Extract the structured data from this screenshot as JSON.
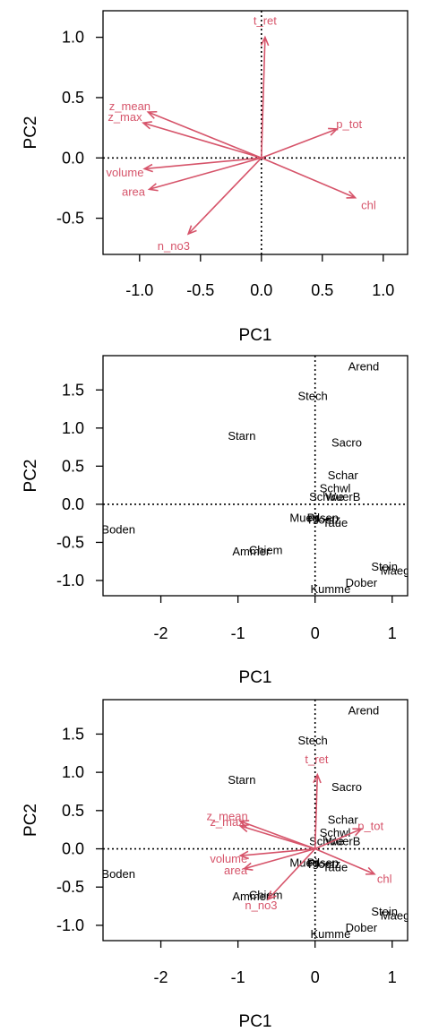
{
  "colors": {
    "arrow": "#D6546A",
    "frame": "#000000",
    "text": "#000000"
  },
  "chart_data": [
    {
      "type": "scatter",
      "title": "",
      "xlabel": "PC1",
      "ylabel": "PC2",
      "xlim": [
        -1.3,
        1.2
      ],
      "ylim": [
        -0.8,
        1.22
      ],
      "xticks": [
        -1.0,
        -0.5,
        0.0,
        0.5,
        1.0
      ],
      "xtick_labels": [
        "-1.0",
        "-0.5",
        "0.0",
        "0.5",
        "1.0"
      ],
      "yticks": [
        -0.5,
        0.0,
        0.5,
        1.0
      ],
      "ytick_labels": [
        "-0.5",
        "0.0",
        "0.5",
        "1.0"
      ],
      "reference_lines": {
        "x": 0,
        "y": 0,
        "style": "dotted"
      },
      "arrows": [
        {
          "name": "t_ret",
          "x": 0.03,
          "y": 1.0,
          "lx": 0.03,
          "ly": 1.14
        },
        {
          "name": "p_tot",
          "x": 0.62,
          "y": 0.24,
          "lx": 0.72,
          "ly": 0.28
        },
        {
          "name": "z_mean",
          "x": -0.93,
          "y": 0.38,
          "lx": -1.08,
          "ly": 0.43
        },
        {
          "name": "z_max",
          "x": -0.97,
          "y": 0.29,
          "lx": -1.12,
          "ly": 0.34
        },
        {
          "name": "volume",
          "x": -0.96,
          "y": -0.09,
          "lx": -1.12,
          "ly": -0.12
        },
        {
          "name": "area",
          "x": -0.92,
          "y": -0.26,
          "lx": -1.05,
          "ly": -0.28
        },
        {
          "name": "chl",
          "x": 0.77,
          "y": -0.33,
          "lx": 0.88,
          "ly": -0.39
        },
        {
          "name": "n_no3",
          "x": -0.6,
          "y": -0.63,
          "lx": -0.72,
          "ly": -0.73
        }
      ]
    },
    {
      "type": "scatter",
      "title": "",
      "xlabel": "PC1",
      "ylabel": "PC2",
      "xlim": [
        -2.75,
        1.2
      ],
      "ylim": [
        -1.2,
        1.95
      ],
      "xticks": [
        -2,
        -1,
        0,
        1
      ],
      "xtick_labels": [
        "-2",
        "-1",
        "0",
        "1"
      ],
      "yticks": [
        -1.0,
        -0.5,
        0.0,
        0.5,
        1.0,
        1.5
      ],
      "ytick_labels": [
        "-1.0",
        "-0.5",
        "0.0",
        "0.5",
        "1.0",
        "1.5"
      ],
      "reference_lines": {
        "x": 0,
        "y": 0,
        "style": "dotted"
      },
      "points": [
        {
          "name": "Arend",
          "x": 0.63,
          "y": 1.81
        },
        {
          "name": "Stech",
          "x": -0.03,
          "y": 1.42
        },
        {
          "name": "Starn",
          "x": -0.95,
          "y": 0.9
        },
        {
          "name": "Sacro",
          "x": 0.41,
          "y": 0.81
        },
        {
          "name": "Schar",
          "x": 0.36,
          "y": 0.38
        },
        {
          "name": "Schwl",
          "x": 0.26,
          "y": 0.21
        },
        {
          "name": "Schwe",
          "x": 0.15,
          "y": 0.1
        },
        {
          "name": "WuerB",
          "x": 0.36,
          "y": 0.1
        },
        {
          "name": "Mueg",
          "x": -0.14,
          "y": -0.18
        },
        {
          "name": "Pilsen",
          "x": 0.1,
          "y": -0.18
        },
        {
          "name": "Ploetz",
          "x": 0.12,
          "y": -0.2
        },
        {
          "name": "Taue",
          "x": 0.26,
          "y": -0.24
        },
        {
          "name": "Boden",
          "x": -2.55,
          "y": -0.33
        },
        {
          "name": "Chiem",
          "x": -0.64,
          "y": -0.6
        },
        {
          "name": "Ammer",
          "x": -0.83,
          "y": -0.62
        },
        {
          "name": "Stein",
          "x": 0.9,
          "y": -0.82
        },
        {
          "name": "Maegg",
          "x": 1.08,
          "y": -0.87
        },
        {
          "name": "Dober",
          "x": 0.6,
          "y": -1.03
        },
        {
          "name": "Kumme",
          "x": 0.2,
          "y": -1.11
        }
      ]
    },
    {
      "type": "scatter",
      "title": "",
      "xlabel": "PC1",
      "ylabel": "PC2",
      "xlim": [
        -2.75,
        1.2
      ],
      "ylim": [
        -1.2,
        1.95
      ],
      "xticks": [
        -2,
        -1,
        0,
        1
      ],
      "xtick_labels": [
        "-2",
        "-1",
        "0",
        "1"
      ],
      "yticks": [
        -1.0,
        -0.5,
        0.0,
        0.5,
        1.0,
        1.5
      ],
      "ytick_labels": [
        "-1.0",
        "-0.5",
        "0.0",
        "0.5",
        "1.0",
        "1.5"
      ],
      "reference_lines": {
        "x": 0,
        "y": 0,
        "style": "dotted"
      },
      "points": [
        {
          "name": "Arend",
          "x": 0.63,
          "y": 1.81
        },
        {
          "name": "Stech",
          "x": -0.03,
          "y": 1.42
        },
        {
          "name": "Starn",
          "x": -0.95,
          "y": 0.9
        },
        {
          "name": "Sacro",
          "x": 0.41,
          "y": 0.81
        },
        {
          "name": "Schar",
          "x": 0.36,
          "y": 0.38
        },
        {
          "name": "Schwl",
          "x": 0.26,
          "y": 0.21
        },
        {
          "name": "Schwe",
          "x": 0.15,
          "y": 0.1
        },
        {
          "name": "WuerB",
          "x": 0.36,
          "y": 0.1
        },
        {
          "name": "Mueg",
          "x": -0.14,
          "y": -0.18
        },
        {
          "name": "Pilsen",
          "x": 0.1,
          "y": -0.18
        },
        {
          "name": "Ploetz",
          "x": 0.12,
          "y": -0.2
        },
        {
          "name": "Taue",
          "x": 0.26,
          "y": -0.24
        },
        {
          "name": "Boden",
          "x": -2.55,
          "y": -0.33
        },
        {
          "name": "Chiem",
          "x": -0.64,
          "y": -0.6
        },
        {
          "name": "Ammer",
          "x": -0.83,
          "y": -0.62
        },
        {
          "name": "Stein",
          "x": 0.9,
          "y": -0.82
        },
        {
          "name": "Maegg",
          "x": 1.08,
          "y": -0.87
        },
        {
          "name": "Dober",
          "x": 0.6,
          "y": -1.03
        },
        {
          "name": "Kumme",
          "x": 0.2,
          "y": -1.11
        }
      ],
      "arrows": [
        {
          "name": "t_ret",
          "x": 0.03,
          "y": 0.97,
          "lx": 0.02,
          "ly": 1.17
        },
        {
          "name": "p_tot",
          "x": 0.6,
          "y": 0.26,
          "lx": 0.72,
          "ly": 0.3
        },
        {
          "name": "z_mean",
          "x": -0.97,
          "y": 0.36,
          "lx": -1.14,
          "ly": 0.43
        },
        {
          "name": "z_max",
          "x": -0.97,
          "y": 0.3,
          "lx": -1.14,
          "ly": 0.35
        },
        {
          "name": "volume",
          "x": -0.97,
          "y": -0.09,
          "lx": -1.12,
          "ly": -0.13
        },
        {
          "name": "area",
          "x": -0.92,
          "y": -0.26,
          "lx": -1.03,
          "ly": -0.28
        },
        {
          "name": "chl",
          "x": 0.77,
          "y": -0.33,
          "lx": 0.9,
          "ly": -0.39
        },
        {
          "name": "n_no3",
          "x": -0.61,
          "y": -0.66,
          "lx": -0.7,
          "ly": -0.74
        }
      ]
    }
  ]
}
